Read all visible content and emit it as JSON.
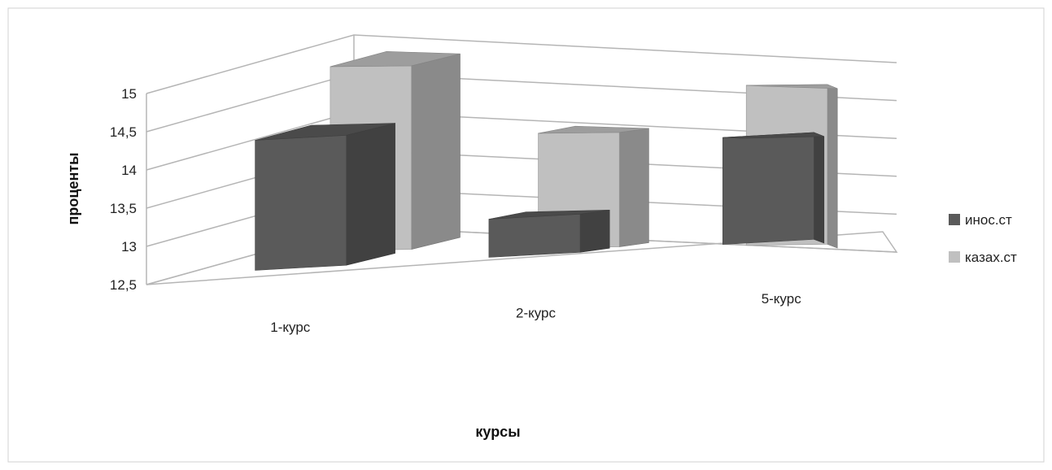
{
  "chart_data": {
    "type": "bar",
    "categories": [
      "1-курс",
      "2-курс",
      "5-курс"
    ],
    "series": [
      {
        "name": "инос.ст",
        "values": [
          14.2,
          13.0,
          13.9
        ],
        "color": "#5a5a5a"
      },
      {
        "name": "казах.ст",
        "values": [
          14.9,
          14.0,
          14.6
        ],
        "color": "#c0c0c0"
      }
    ],
    "xlabel": "курсы",
    "ylabel": "проценты",
    "ylim": [
      12.5,
      15
    ],
    "yticks": [
      "12,5",
      "13",
      "13,5",
      "14",
      "14,5",
      "15"
    ],
    "grid": true,
    "legend": "right",
    "projection": "3d"
  }
}
